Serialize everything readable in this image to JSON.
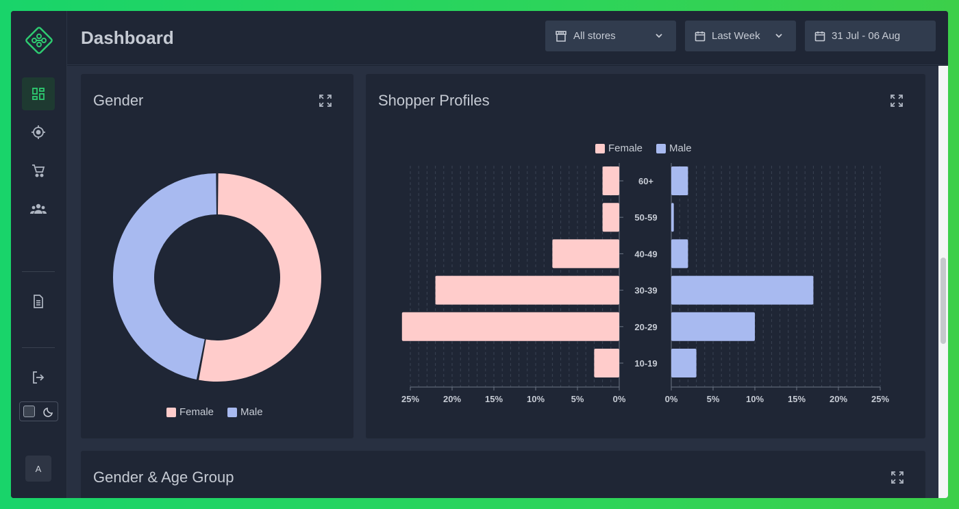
{
  "header": {
    "title": "Dashboard",
    "store_filter": "All stores",
    "period_filter": "Last Week",
    "date_range": "31 Jul - 06 Aug"
  },
  "sidebar": {
    "items": [
      {
        "icon": "dashboard-icon",
        "active": true
      },
      {
        "icon": "location-target-icon",
        "active": false
      },
      {
        "icon": "shopping-cart-icon",
        "active": false
      },
      {
        "icon": "group-icon",
        "active": false
      },
      {
        "icon": "document-icon",
        "active": false
      },
      {
        "icon": "logout-icon",
        "active": false
      }
    ],
    "avatar": "A"
  },
  "cards": {
    "gender": {
      "title": "Gender"
    },
    "shopper": {
      "title": "Shopper Profiles"
    },
    "gender_age": {
      "title": "Gender & Age Group"
    }
  },
  "colors": {
    "female": "#ffcccb",
    "male": "#a8baf0",
    "accent": "#2ecc71"
  },
  "chart_data": [
    {
      "type": "pie",
      "title": "Gender",
      "categories": [
        "Female",
        "Male"
      ],
      "values": [
        53,
        47
      ],
      "legend": "bottom"
    },
    {
      "type": "bar",
      "title": "Shopper Profiles",
      "orientation": "horizontal",
      "categories": [
        "60+",
        "50-59",
        "40-49",
        "30-39",
        "20-29",
        "10-19"
      ],
      "series": [
        {
          "name": "Female",
          "values": [
            2,
            2,
            8,
            22,
            26,
            3
          ]
        },
        {
          "name": "Male",
          "values": [
            2,
            0.3,
            2,
            17,
            10,
            3
          ]
        }
      ],
      "xticks": [
        "25%",
        "20%",
        "15%",
        "10%",
        "5%",
        "0%"
      ],
      "xticks_right": [
        "0%",
        "5%",
        "10%",
        "15%",
        "20%",
        "25%"
      ],
      "xlim": [
        0,
        25
      ],
      "legend": "top",
      "grid": true
    }
  ]
}
